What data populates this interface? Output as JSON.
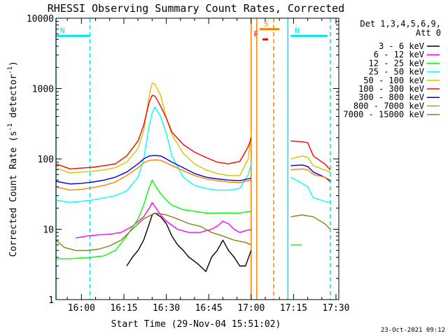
{
  "chart_data": {
    "type": "line",
    "title": "RHESSI Observing Summary Count Rates, Corrected",
    "xlabel": "Start Time (29-Nov-04 15:51:02)",
    "ylabel": "Corrected Count Rate (s⁻¹ detector⁻¹)",
    "ylabel_parts": {
      "main": "Corrected Count Rate (s",
      "sup1": "-1",
      "mid": " detector",
      "sup2": "-1",
      "end": ")"
    },
    "yscale": "log",
    "xlim": [
      "15:51",
      "17:31"
    ],
    "ylim": [
      1,
      10000
    ],
    "xticks": [
      "16:00",
      "16:15",
      "16:30",
      "16:45",
      "17:00",
      "17:15",
      "17:30"
    ],
    "yticks": [
      "1",
      "10",
      "100",
      "1000",
      "10000"
    ],
    "legend_header": [
      "Det 1,3,4,5,6,9,",
      "Att 0"
    ],
    "legend_position": "right",
    "footer_date": "23-Oct-2021 09:12",
    "annotations": [
      {
        "label": "N",
        "color": "#00e5ee",
        "interval": [
          "15:51",
          "16:03"
        ],
        "level": 5600
      },
      {
        "label": "N",
        "color": "#00e5ee",
        "interval": [
          "17:14",
          "17:27"
        ],
        "level": 5600
      },
      {
        "label": "F",
        "color": "#ff0000",
        "interval": [
          "17:04",
          "17:06"
        ],
        "level": 5000
      },
      {
        "label": "S",
        "color": "#ff8000",
        "interval": [
          "17:03",
          "17:10"
        ],
        "level": 7000
      }
    ],
    "vertical_lines": [
      {
        "time": "15:51",
        "color": "#00e5ee",
        "style": "solid"
      },
      {
        "time": "16:03",
        "color": "#00e5ee",
        "style": "dashed"
      },
      {
        "time": "17:00",
        "color": "#ff8000",
        "style": "solid"
      },
      {
        "time": "17:02",
        "color": "#ff8000",
        "style": "solid"
      },
      {
        "time": "17:08",
        "color": "#ff8000",
        "style": "dashed"
      },
      {
        "time": "17:13",
        "color": "#00e5ee",
        "style": "solid"
      },
      {
        "time": "17:28",
        "color": "#00e5ee",
        "style": "dashed"
      }
    ],
    "series": [
      {
        "name": "3 - 6 keV",
        "color": "#000000",
        "x": [
          "16:16",
          "16:18",
          "16:20",
          "16:22",
          "16:24",
          "16:25",
          "16:26",
          "16:28",
          "16:30",
          "16:32",
          "16:34",
          "16:36",
          "16:38",
          "16:40",
          "16:42",
          "16:44",
          "16:46",
          "16:48",
          "16:50",
          "16:52",
          "16:54",
          "16:56",
          "16:58",
          "17:00"
        ],
        "values": [
          3,
          4,
          5,
          7,
          12,
          16,
          17,
          15,
          12,
          8,
          6,
          5,
          4,
          3.5,
          3,
          2.5,
          4,
          5,
          7,
          5,
          4,
          3,
          3,
          5
        ]
      },
      {
        "name": "6 - 12 keV",
        "color": "#ff00ff",
        "x": [
          "15:58",
          "16:02",
          "16:06",
          "16:10",
          "16:14",
          "16:18",
          "16:22",
          "16:24",
          "16:25",
          "16:26",
          "16:28",
          "16:30",
          "16:34",
          "16:38",
          "16:42",
          "16:46",
          "16:48",
          "16:50",
          "16:52",
          "16:54",
          "16:56",
          "16:58",
          "17:00"
        ],
        "values": [
          7.5,
          8,
          8.3,
          8.5,
          9,
          11,
          15,
          20,
          24,
          21,
          16,
          13,
          10,
          9,
          9,
          10,
          11,
          13,
          12,
          10,
          9,
          9.5,
          10
        ]
      },
      {
        "name": "12 - 25 keV",
        "color": "#00ff00",
        "x": [
          "15:51",
          "15:56",
          "16:00",
          "16:04",
          "16:08",
          "16:12",
          "16:16",
          "16:20",
          "16:22",
          "16:24",
          "16:25",
          "16:26",
          "16:28",
          "16:30",
          "16:32",
          "16:36",
          "16:40",
          "16:44",
          "16:48",
          "16:52",
          "16:56",
          "17:00",
          "17:14",
          "17:16",
          "17:18"
        ],
        "values": [
          3.8,
          3.8,
          3.9,
          4,
          4.2,
          5,
          8,
          14,
          22,
          40,
          50,
          42,
          32,
          26,
          22,
          19,
          18,
          17,
          17,
          17,
          17,
          18,
          6,
          6,
          6
        ]
      },
      {
        "name": "25 - 50 keV",
        "color": "#00ffff",
        "x": [
          "15:51",
          "15:56",
          "16:00",
          "16:04",
          "16:08",
          "16:12",
          "16:16",
          "16:20",
          "16:22",
          "16:24",
          "16:25",
          "16:26",
          "16:28",
          "16:30",
          "16:32",
          "16:36",
          "16:40",
          "16:44",
          "16:48",
          "16:52",
          "16:56",
          "16:59",
          "17:00",
          "17:14",
          "17:18",
          "17:20",
          "17:22",
          "17:26",
          "17:28"
        ],
        "values": [
          26,
          24,
          25,
          26,
          28,
          30,
          35,
          55,
          100,
          300,
          450,
          550,
          400,
          230,
          110,
          55,
          42,
          38,
          36,
          36,
          38,
          60,
          85,
          55,
          45,
          40,
          28,
          25,
          24
        ]
      },
      {
        "name": "50 - 100 keV",
        "color": "#d4c400",
        "x": [
          "15:51",
          "15:56",
          "16:00",
          "16:04",
          "16:08",
          "16:12",
          "16:16",
          "16:20",
          "16:22",
          "16:24",
          "16:25",
          "16:26",
          "16:28",
          "16:30",
          "16:32",
          "16:36",
          "16:40",
          "16:44",
          "16:48",
          "16:52",
          "16:56",
          "16:59",
          "17:00",
          "17:14",
          "17:18",
          "17:20",
          "17:22",
          "17:26",
          "17:28"
        ],
        "values": [
          75,
          63,
          65,
          67,
          70,
          75,
          90,
          140,
          250,
          800,
          1200,
          1150,
          800,
          380,
          220,
          120,
          85,
          70,
          62,
          58,
          58,
          100,
          230,
          100,
          110,
          105,
          80,
          70,
          65
        ]
      },
      {
        "name": "100 - 300 keV",
        "color": "#ff0000",
        "x": [
          "15:51",
          "15:56",
          "16:00",
          "16:04",
          "16:08",
          "16:12",
          "16:16",
          "16:20",
          "16:22",
          "16:24",
          "16:25",
          "16:26",
          "16:28",
          "16:30",
          "16:32",
          "16:36",
          "16:40",
          "16:44",
          "16:48",
          "16:52",
          "16:56",
          "16:59",
          "17:00",
          "17:14",
          "17:18",
          "17:20",
          "17:22",
          "17:26",
          "17:28"
        ],
        "values": [
          85,
          72,
          74,
          76,
          80,
          85,
          110,
          180,
          300,
          650,
          800,
          780,
          560,
          380,
          240,
          160,
          125,
          105,
          90,
          85,
          92,
          150,
          200,
          180,
          175,
          170,
          110,
          85,
          70
        ]
      },
      {
        "name": "300 - 800 keV",
        "color": "#0000d8",
        "x": [
          "15:51",
          "15:56",
          "16:00",
          "16:04",
          "16:08",
          "16:12",
          "16:16",
          "16:20",
          "16:22",
          "16:24",
          "16:26",
          "16:28",
          "16:30",
          "16:32",
          "16:36",
          "16:40",
          "16:44",
          "16:48",
          "16:52",
          "16:56",
          "17:00",
          "17:14",
          "17:18",
          "17:20",
          "17:22",
          "17:26",
          "17:28"
        ],
        "values": [
          48,
          44,
          45,
          47,
          50,
          55,
          65,
          85,
          100,
          110,
          112,
          110,
          100,
          90,
          75,
          62,
          55,
          52,
          50,
          49,
          53,
          80,
          82,
          78,
          65,
          55,
          48
        ]
      },
      {
        "name": "800 - 7000 keV",
        "color": "#ff8000",
        "x": [
          "15:51",
          "15:56",
          "16:00",
          "16:04",
          "16:08",
          "16:12",
          "16:16",
          "16:20",
          "16:22",
          "16:24",
          "16:26",
          "16:28",
          "16:30",
          "16:32",
          "16:36",
          "16:40",
          "16:44",
          "16:48",
          "16:52",
          "16:56",
          "17:00",
          "17:14",
          "17:18",
          "17:20",
          "17:22",
          "17:26",
          "17:28"
        ],
        "values": [
          40,
          36,
          37,
          39,
          42,
          47,
          58,
          75,
          88,
          95,
          97,
          95,
          88,
          80,
          68,
          58,
          52,
          49,
          47,
          46,
          50,
          70,
          72,
          70,
          60,
          55,
          50
        ]
      },
      {
        "name": "7000 - 15000 keV",
        "color": "#8b7e14",
        "x": [
          "15:51",
          "15:54",
          "15:58",
          "16:02",
          "16:06",
          "16:10",
          "16:14",
          "16:18",
          "16:22",
          "16:26",
          "16:30",
          "16:34",
          "16:38",
          "16:42",
          "16:46",
          "16:50",
          "16:54",
          "16:58",
          "17:00",
          "17:14",
          "17:18",
          "17:22",
          "17:26",
          "17:28"
        ],
        "values": [
          7,
          5.5,
          5,
          5,
          5.2,
          5.8,
          7,
          10,
          14,
          17,
          16,
          14,
          12,
          11,
          9,
          8,
          7,
          6.5,
          6,
          15,
          16,
          15,
          12,
          10
        ]
      }
    ]
  }
}
